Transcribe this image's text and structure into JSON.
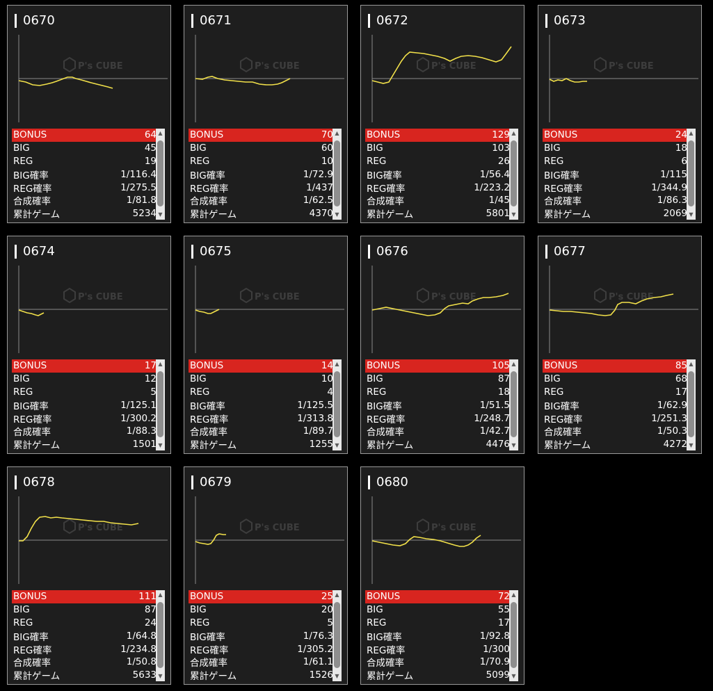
{
  "watermark": {
    "brand": "P's CUBE"
  },
  "labels": [
    "BONUS",
    "BIG",
    "REG",
    "BIG確率",
    "REG確率",
    "合成確率",
    "累計ゲーム"
  ],
  "colors": {
    "line": "#f2e14a",
    "bonus_bg": "#d8251f",
    "card_bg": "#1e1e1e",
    "border": "#9a9a9a"
  },
  "scroll_icons": {
    "up": "▲",
    "down": "▼"
  },
  "machines": [
    {
      "number": "0670",
      "stats": [
        "64",
        "45",
        "19",
        "1/116.4",
        "1/275.5",
        "1/81.8",
        "5234"
      ]
    },
    {
      "number": "0671",
      "stats": [
        "70",
        "60",
        "10",
        "1/72.9",
        "1/437",
        "1/62.5",
        "4370"
      ]
    },
    {
      "number": "0672",
      "stats": [
        "129",
        "103",
        "26",
        "1/56.4",
        "1/223.2",
        "1/45",
        "5801"
      ]
    },
    {
      "number": "0673",
      "stats": [
        "24",
        "18",
        "6",
        "1/115",
        "1/344.9",
        "1/86.3",
        "2069"
      ]
    },
    {
      "number": "0674",
      "stats": [
        "17",
        "12",
        "5",
        "1/125.1",
        "1/300.2",
        "1/88.3",
        "1501"
      ]
    },
    {
      "number": "0675",
      "stats": [
        "14",
        "10",
        "4",
        "1/125.5",
        "1/313.8",
        "1/89.7",
        "1255"
      ]
    },
    {
      "number": "0676",
      "stats": [
        "105",
        "87",
        "18",
        "1/51.5",
        "1/248.7",
        "1/42.7",
        "4476"
      ]
    },
    {
      "number": "0677",
      "stats": [
        "85",
        "68",
        "17",
        "1/62.9",
        "1/251.3",
        "1/50.3",
        "4272"
      ]
    },
    {
      "number": "0678",
      "stats": [
        "111",
        "87",
        "24",
        "1/64.8",
        "1/234.8",
        "1/50.8",
        "5633"
      ]
    },
    {
      "number": "0679",
      "stats": [
        "25",
        "20",
        "5",
        "1/76.3",
        "1/305.2",
        "1/61.1",
        "1526"
      ]
    },
    {
      "number": "0680",
      "stats": [
        "72",
        "55",
        "17",
        "1/92.8",
        "1/300",
        "1/70.9",
        "5099"
      ]
    }
  ]
}
